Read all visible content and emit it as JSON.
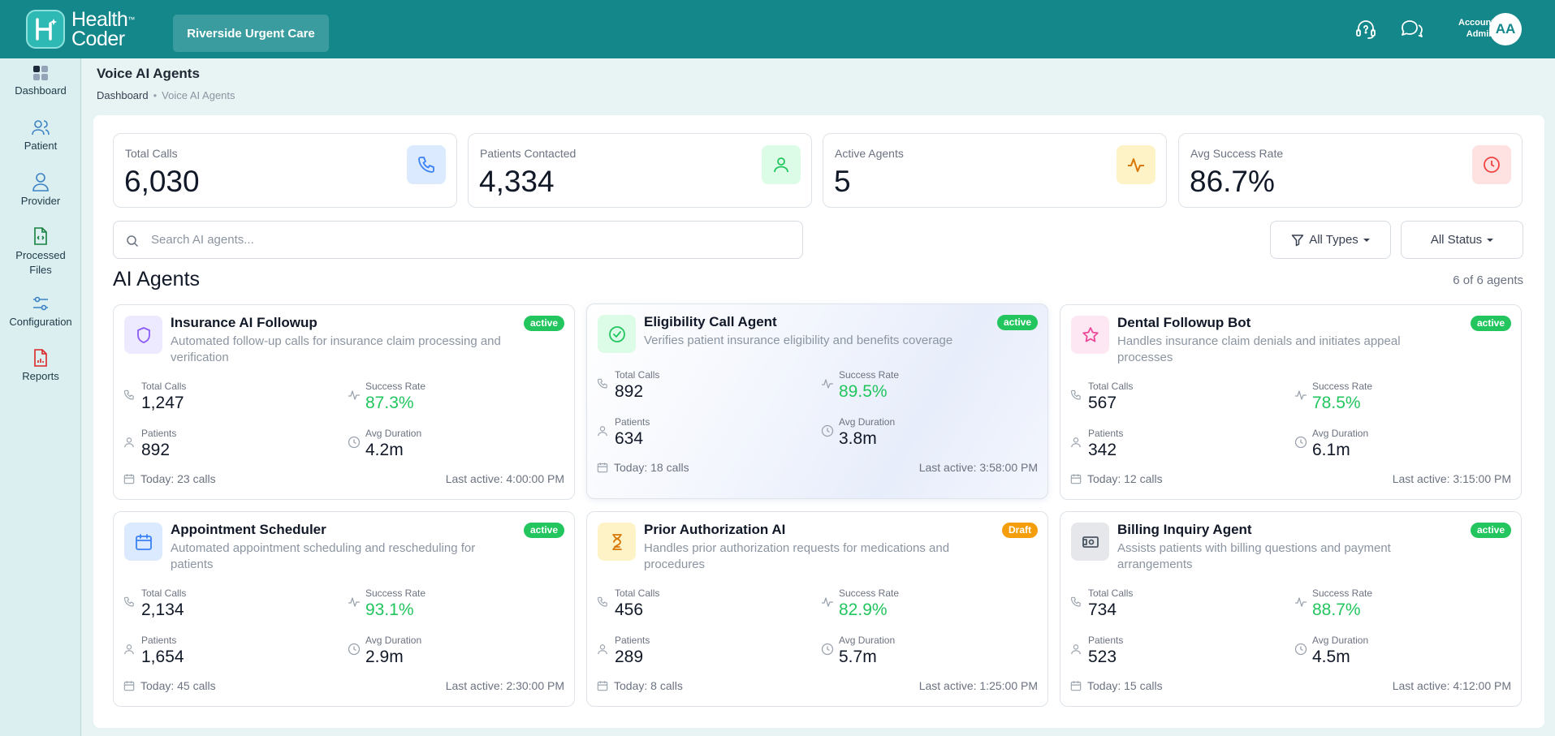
{
  "header": {
    "logo_line1": "Health",
    "logo_line2": "Coder",
    "logo_tm": "™",
    "facility": "Riverside Urgent Care",
    "account_line1": "Account",
    "account_line2": "Admin",
    "avatar_initials": "AA"
  },
  "sidebar": {
    "items": [
      {
        "label": "Dashboard",
        "icon": "dashboard-icon"
      },
      {
        "label": "Patient",
        "icon": "users-icon"
      },
      {
        "label": "Provider",
        "icon": "user-icon"
      },
      {
        "label": "Processed Files",
        "icon": "file-icon"
      },
      {
        "label": "Configuration",
        "icon": "sliders-icon"
      },
      {
        "label": "Reports",
        "icon": "report-icon"
      }
    ]
  },
  "page": {
    "title": "Voice AI Agents",
    "breadcrumb": [
      "Dashboard",
      "Voice AI Agents"
    ],
    "breadcrumb_sep": "•"
  },
  "stats": [
    {
      "label": "Total Calls",
      "value": "6,030",
      "icon": "phone-icon",
      "color": "#3b82f6",
      "bg": "#dbeafe"
    },
    {
      "label": "Patients Contacted",
      "value": "4,334",
      "icon": "user-icon",
      "color": "#22c55e",
      "bg": "#dcfce7"
    },
    {
      "label": "Active Agents",
      "value": "5",
      "icon": "activity-icon",
      "color": "#d97706",
      "bg": "#fef3c7"
    },
    {
      "label": "Avg Success Rate",
      "value": "86.7%",
      "icon": "clock-icon",
      "color": "#ef4444",
      "bg": "#fee2e2"
    }
  ],
  "search": {
    "placeholder": "Search AI agents..."
  },
  "filters": {
    "types": "All Types",
    "status": "All Status"
  },
  "section": {
    "title": "AI Agents",
    "count": "6 of 6 agents"
  },
  "metric_labels": {
    "total_calls": "Total Calls",
    "success_rate": "Success Rate",
    "patients": "Patients",
    "avg_duration": "Avg Duration"
  },
  "agents": [
    {
      "name": "Insurance AI Followup",
      "description": "Automated follow-up calls for insurance claim processing and verification",
      "status": "active",
      "icon": "shield-icon",
      "color": "#8b5cf6",
      "bg": "#ede9fe",
      "total_calls": "1,247",
      "success_rate": "87.3%",
      "patients": "892",
      "avg_duration": "4.2m",
      "today": "Today: 23 calls",
      "last_active": "Last active: 4:00:00 PM"
    },
    {
      "name": "Eligibility Call Agent",
      "description": "Verifies patient insurance eligibility and benefits coverage",
      "status": "active",
      "icon": "check-circle-icon",
      "color": "#22c55e",
      "bg": "#dcfce7",
      "total_calls": "892",
      "success_rate": "89.5%",
      "patients": "634",
      "avg_duration": "3.8m",
      "today": "Today: 18 calls",
      "last_active": "Last active: 3:58:00 PM"
    },
    {
      "name": "Dental Followup Bot",
      "description": "Handles insurance claim denials and initiates appeal processes",
      "status": "active",
      "icon": "star-icon",
      "color": "#ec4899",
      "bg": "#fce7f3",
      "total_calls": "567",
      "success_rate": "78.5%",
      "patients": "342",
      "avg_duration": "6.1m",
      "today": "Today: 12 calls",
      "last_active": "Last active: 3:15:00 PM"
    },
    {
      "name": "Appointment Scheduler",
      "description": "Automated appointment scheduling and rescheduling for patients",
      "status": "active",
      "icon": "calendar-icon",
      "color": "#3b82f6",
      "bg": "#dbeafe",
      "total_calls": "2,134",
      "success_rate": "93.1%",
      "patients": "1,654",
      "avg_duration": "2.9m",
      "today": "Today: 45 calls",
      "last_active": "Last active: 2:30:00 PM"
    },
    {
      "name": "Prior Authorization AI",
      "description": "Handles prior authorization requests for medications and procedures",
      "status": "Draft",
      "icon": "hourglass-icon",
      "color": "#d97706",
      "bg": "#fef3c7",
      "total_calls": "456",
      "success_rate": "82.9%",
      "patients": "289",
      "avg_duration": "5.7m",
      "today": "Today: 8 calls",
      "last_active": "Last active: 1:25:00 PM"
    },
    {
      "name": "Billing Inquiry Agent",
      "description": "Assists patients with billing questions and payment arrangements",
      "status": "active",
      "icon": "cash-icon",
      "color": "#4b5563",
      "bg": "#e5e7eb",
      "total_calls": "734",
      "success_rate": "88.7%",
      "patients": "523",
      "avg_duration": "4.5m",
      "today": "Today: 15 calls",
      "last_active": "Last active: 4:12:00 PM"
    }
  ]
}
